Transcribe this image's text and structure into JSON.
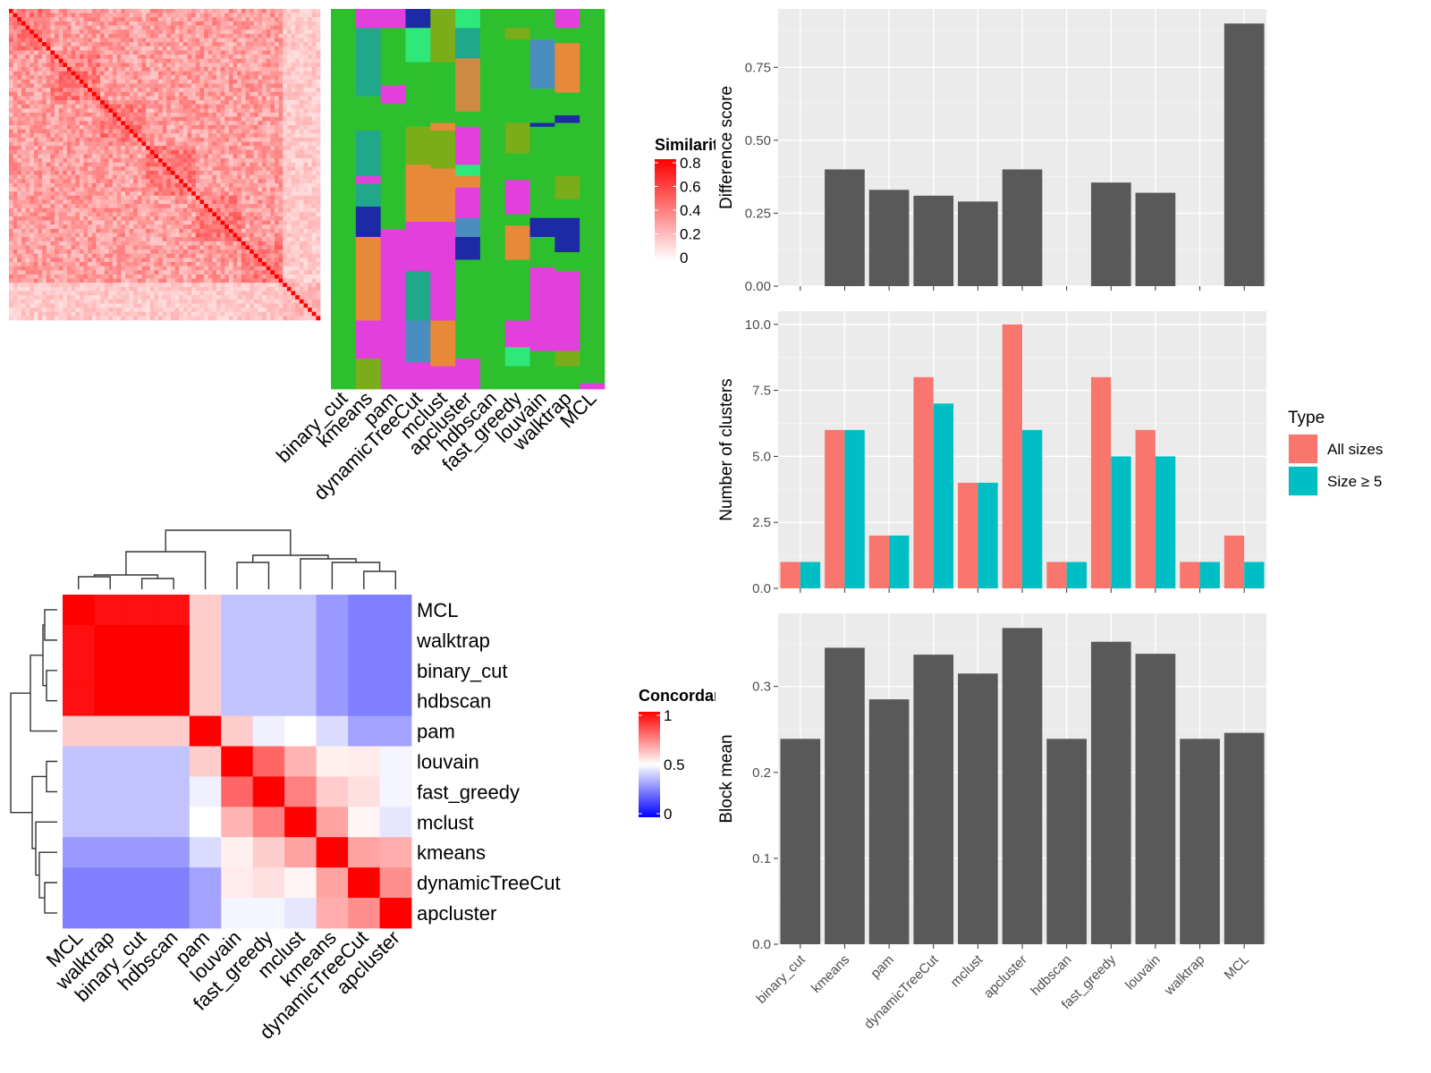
{
  "methods_order": [
    "binary_cut",
    "kmeans",
    "pam",
    "dynamicTreeCut",
    "mclust",
    "apcluster",
    "hdbscan",
    "fast_greedy",
    "louvain",
    "walktrap",
    "MCL"
  ],
  "similarity_heatmap": {
    "type": "heatmap",
    "n_items": 75,
    "legend_title": "Similarity",
    "legend_ticks": [
      "0.8",
      "0.6",
      "0.4",
      "0.2",
      "0"
    ],
    "colors": {
      "low": "#ffffff",
      "high": "#ff0000"
    }
  },
  "cluster_label_panel": {
    "type": "heatmap",
    "columns": [
      "binary_cut",
      "kmeans",
      "pam",
      "dynamicTreeCut",
      "mclust",
      "apcluster",
      "hdbscan",
      "fast_greedy",
      "louvain",
      "walktrap",
      "MCL"
    ],
    "palette": [
      "#2ebf2e",
      "#e23fdc",
      "#e8893a",
      "#7aad19",
      "#21a88a",
      "#1d2aa6",
      "#4a8ebf",
      "#2ee87a",
      "#cd8a44",
      "#84b62a",
      "#3a72c2"
    ],
    "background": "#2ebf2e"
  },
  "concordance_heatmap": {
    "type": "heatmap",
    "order": [
      "MCL",
      "walktrap",
      "binary_cut",
      "hdbscan",
      "pam",
      "louvain",
      "fast_greedy",
      "mclust",
      "kmeans",
      "dynamicTreeCut",
      "apcluster"
    ],
    "legend_title": "Concordance",
    "legend_ticks": [
      "1",
      "0.5",
      "0"
    ],
    "colors": {
      "low": "#0000ff",
      "mid": "#ffffff",
      "high": "#ff0000"
    },
    "matrix": [
      [
        1.0,
        0.97,
        0.97,
        0.97,
        0.6,
        0.38,
        0.38,
        0.38,
        0.3,
        0.25,
        0.25
      ],
      [
        0.97,
        1.0,
        1.0,
        1.0,
        0.6,
        0.38,
        0.38,
        0.38,
        0.3,
        0.25,
        0.25
      ],
      [
        0.97,
        1.0,
        1.0,
        1.0,
        0.6,
        0.38,
        0.38,
        0.38,
        0.3,
        0.25,
        0.25
      ],
      [
        0.97,
        1.0,
        1.0,
        1.0,
        0.6,
        0.38,
        0.38,
        0.38,
        0.3,
        0.25,
        0.25
      ],
      [
        0.6,
        0.6,
        0.6,
        0.6,
        1.0,
        0.6,
        0.47,
        0.5,
        0.43,
        0.32,
        0.32
      ],
      [
        0.38,
        0.38,
        0.38,
        0.38,
        0.6,
        1.0,
        0.8,
        0.65,
        0.53,
        0.54,
        0.48
      ],
      [
        0.38,
        0.38,
        0.38,
        0.38,
        0.47,
        0.8,
        1.0,
        0.75,
        0.6,
        0.56,
        0.48
      ],
      [
        0.38,
        0.38,
        0.38,
        0.38,
        0.5,
        0.65,
        0.75,
        1.0,
        0.68,
        0.52,
        0.45
      ],
      [
        0.3,
        0.3,
        0.3,
        0.3,
        0.43,
        0.53,
        0.6,
        0.68,
        1.0,
        0.68,
        0.66
      ],
      [
        0.25,
        0.25,
        0.25,
        0.25,
        0.32,
        0.54,
        0.56,
        0.52,
        0.68,
        1.0,
        0.72
      ],
      [
        0.25,
        0.25,
        0.25,
        0.25,
        0.32,
        0.48,
        0.48,
        0.45,
        0.66,
        0.72,
        1.0
      ]
    ]
  },
  "chart_data": [
    {
      "type": "bar",
      "ylabel": "Difference score",
      "categories": [
        "binary_cut",
        "kmeans",
        "pam",
        "dynamicTreeCut",
        "mclust",
        "apcluster",
        "hdbscan",
        "fast_greedy",
        "louvain",
        "walktrap",
        "MCL"
      ],
      "values": [
        0.0,
        0.4,
        0.33,
        0.31,
        0.29,
        0.4,
        0.0,
        0.355,
        0.32,
        0.0,
        0.9
      ],
      "ylim": [
        0,
        0.95
      ],
      "yticks": [
        0.0,
        0.25,
        0.5,
        0.75
      ],
      "ytick_labels": [
        "0.00",
        "0.25",
        "0.50",
        "0.75"
      ],
      "bar_color": "#595959",
      "grid": true
    },
    {
      "type": "bar",
      "ylabel": "Number of clusters",
      "categories": [
        "binary_cut",
        "kmeans",
        "pam",
        "dynamicTreeCut",
        "mclust",
        "apcluster",
        "hdbscan",
        "fast_greedy",
        "louvain",
        "walktrap",
        "MCL"
      ],
      "series": [
        {
          "name": "All sizes",
          "color": "#f8766d",
          "values": [
            1,
            6,
            2,
            8,
            4,
            10,
            1,
            8,
            6,
            1,
            2
          ]
        },
        {
          "name": "Size ≥ 5",
          "color": "#00bfc4",
          "values": [
            1,
            6,
            2,
            7,
            4,
            6,
            1,
            5,
            5,
            1,
            1
          ]
        }
      ],
      "ylim": [
        0,
        10.5
      ],
      "yticks": [
        0,
        2.5,
        5,
        7.5,
        10
      ],
      "ytick_labels": [
        "0.0",
        "2.5",
        "5.0",
        "7.5",
        "10.0"
      ],
      "legend_title": "Type",
      "legend_position": "right",
      "grid": true
    },
    {
      "type": "bar",
      "ylabel": "Block mean",
      "categories": [
        "binary_cut",
        "kmeans",
        "pam",
        "dynamicTreeCut",
        "mclust",
        "apcluster",
        "hdbscan",
        "fast_greedy",
        "louvain",
        "walktrap",
        "MCL"
      ],
      "values": [
        0.239,
        0.345,
        0.285,
        0.337,
        0.315,
        0.368,
        0.239,
        0.352,
        0.338,
        0.239,
        0.246
      ],
      "ylim": [
        0,
        0.385
      ],
      "yticks": [
        0.0,
        0.1,
        0.2,
        0.3
      ],
      "ytick_labels": [
        "0.0",
        "0.1",
        "0.2",
        "0.3"
      ],
      "bar_color": "#595959",
      "grid": true
    }
  ]
}
